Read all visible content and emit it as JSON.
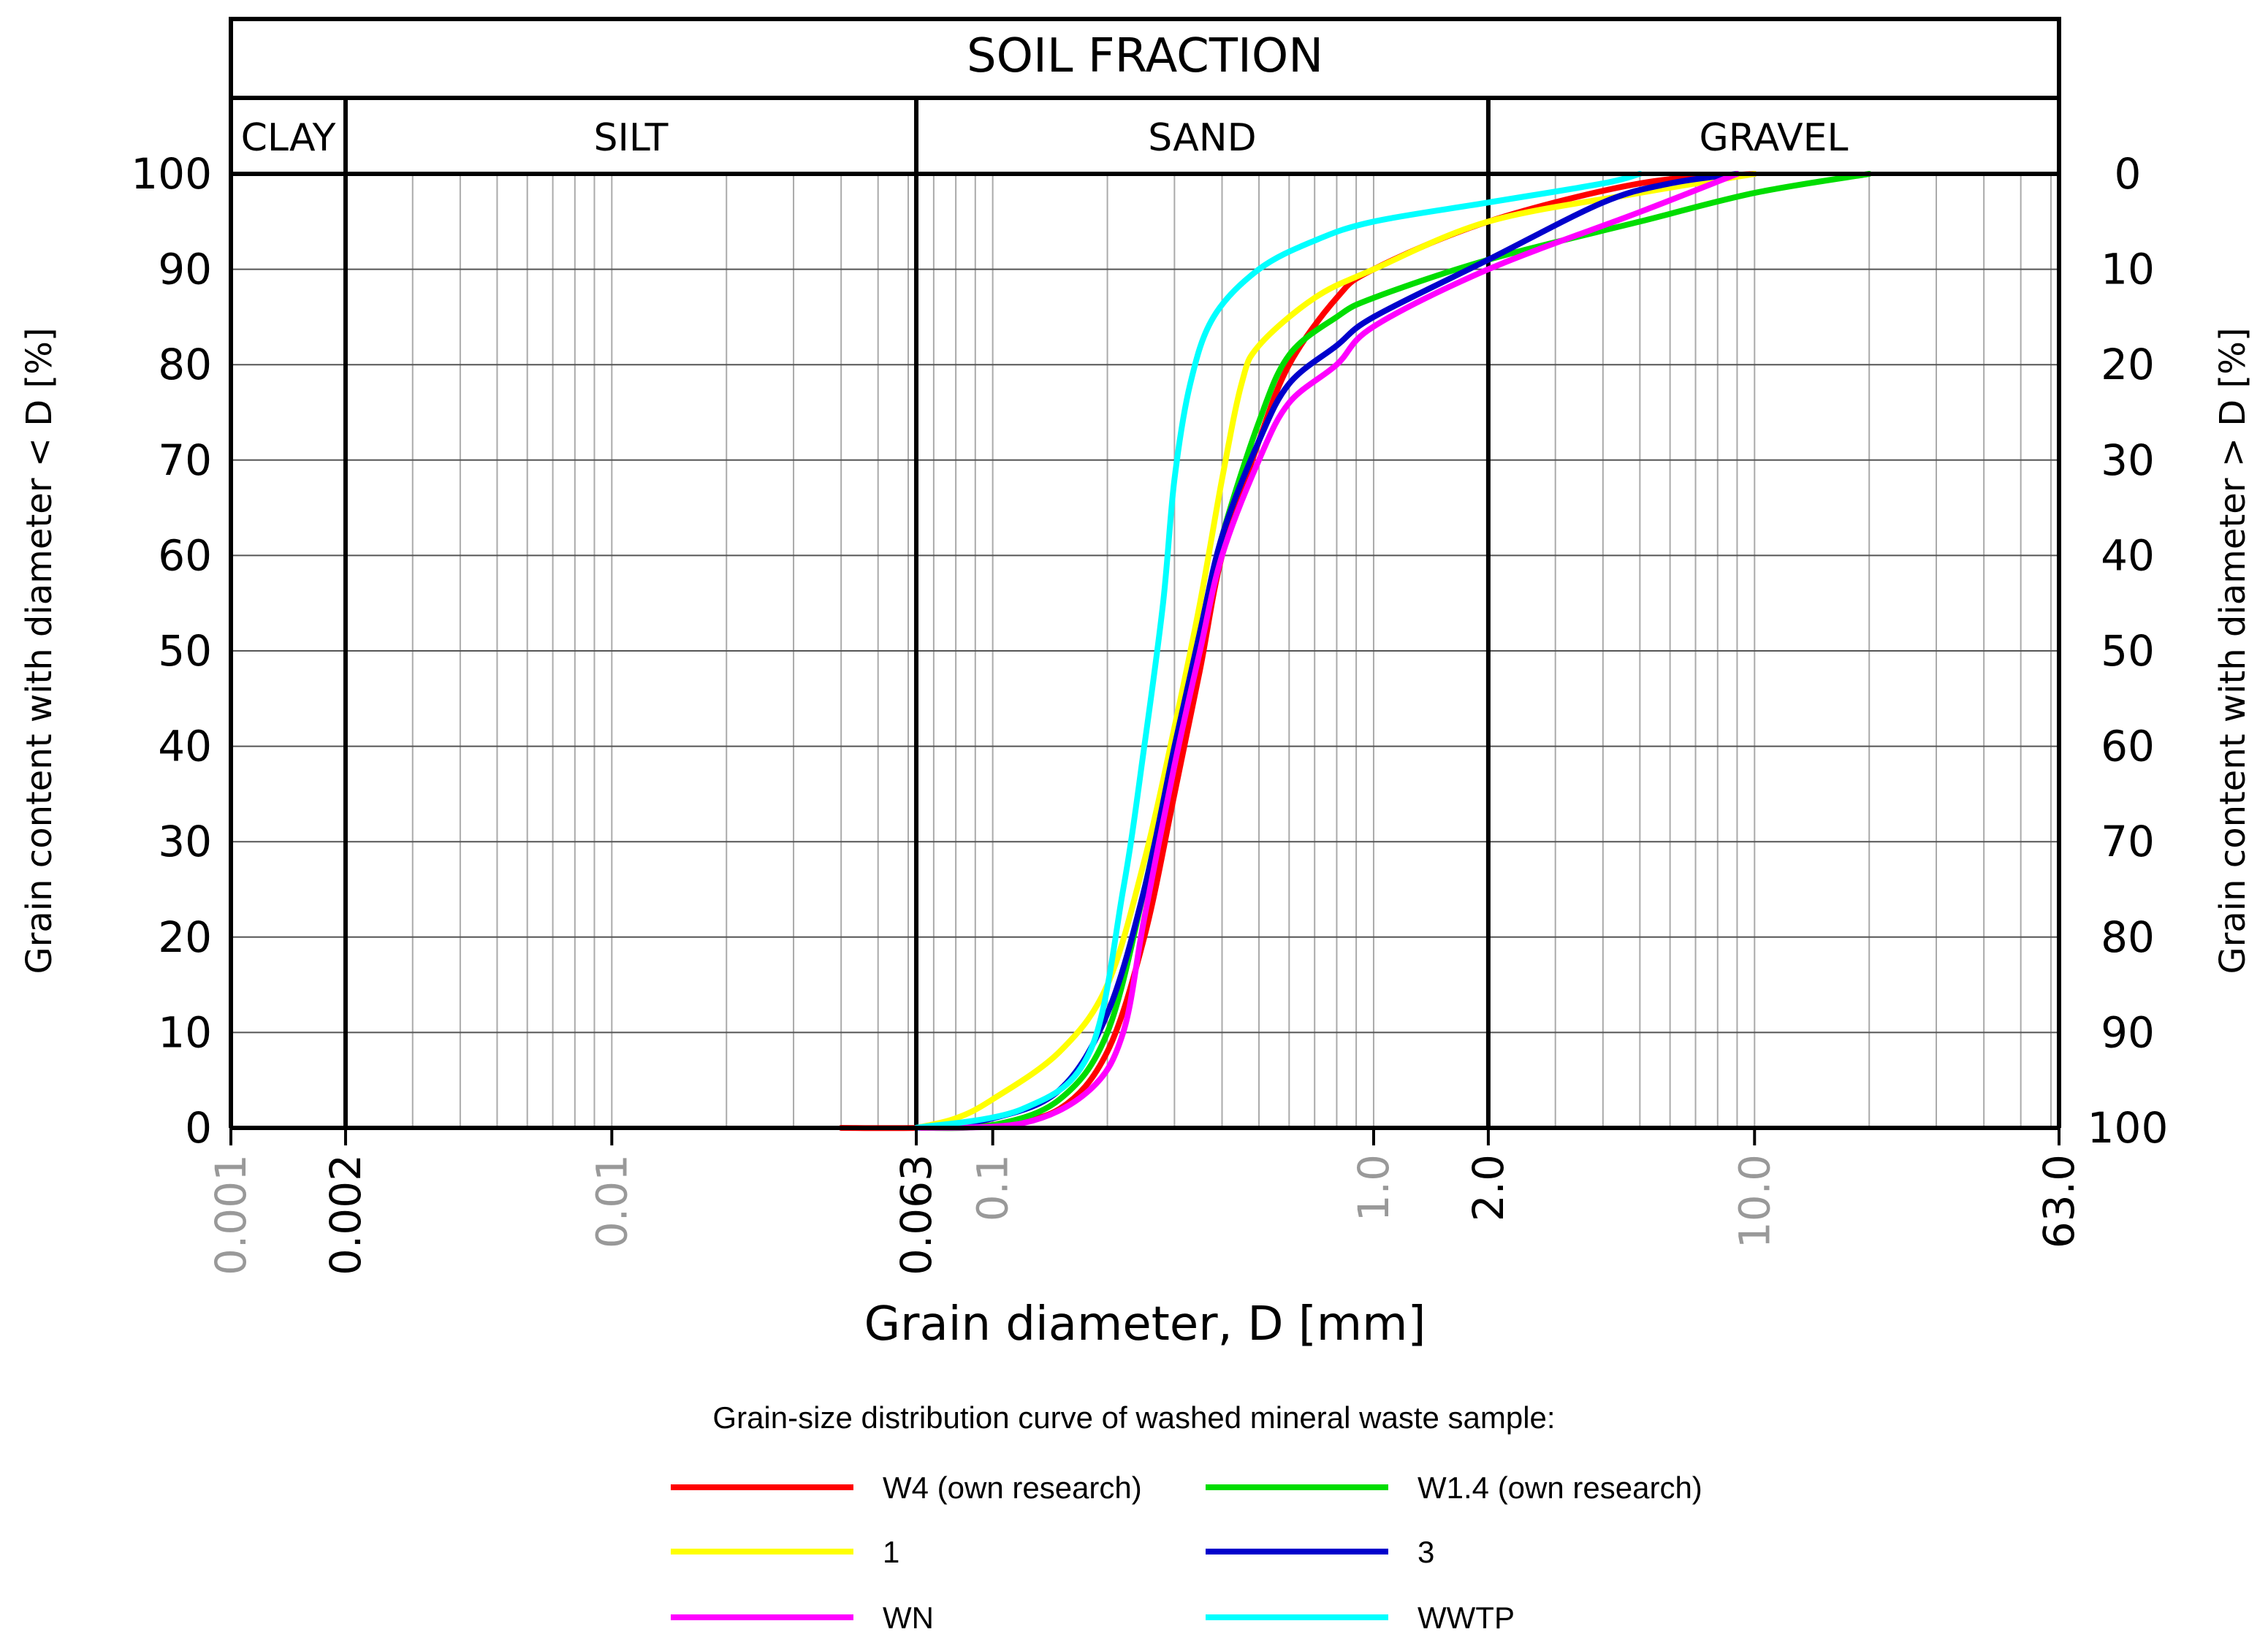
{
  "chart_data": {
    "type": "line",
    "title": "SOIL FRACTION",
    "xlabel": "Grain diameter, D [mm]",
    "ylabel_left": "Grain content with diameter < D [%]",
    "ylabel_right": "Grain content with diameter > D [%]",
    "x_scale": "log",
    "xlim": [
      0.001,
      63.0
    ],
    "ylim": [
      0,
      100
    ],
    "y_ticks_left": [
      "0",
      "10",
      "20",
      "30",
      "40",
      "50",
      "60",
      "70",
      "80",
      "90",
      "100"
    ],
    "y_ticks_right": [
      "100",
      "90",
      "80",
      "70",
      "60",
      "50",
      "40",
      "30",
      "20",
      "10",
      "0"
    ],
    "x_ticks": [
      {
        "value": 0.001,
        "label": "0.001",
        "style": "minor"
      },
      {
        "value": 0.002,
        "label": "0.002",
        "style": "major"
      },
      {
        "value": 0.01,
        "label": "0.01",
        "style": "minor"
      },
      {
        "value": 0.063,
        "label": "0.063",
        "style": "major"
      },
      {
        "value": 0.1,
        "label": "0.1",
        "style": "minor"
      },
      {
        "value": 1.0,
        "label": "1.0",
        "style": "minor"
      },
      {
        "value": 2.0,
        "label": "2.0",
        "style": "major"
      },
      {
        "value": 10.0,
        "label": "10.0",
        "style": "minor"
      },
      {
        "value": 63.0,
        "label": "63.0",
        "style": "major"
      }
    ],
    "fractions": [
      {
        "name": "CLAY",
        "from": 0.001,
        "to": 0.002
      },
      {
        "name": "SILT",
        "from": 0.002,
        "to": 0.063
      },
      {
        "name": "SAND",
        "from": 0.063,
        "to": 2.0
      },
      {
        "name": "GRAVEL",
        "from": 2.0,
        "to": 63.0
      }
    ],
    "legend_title": "Grain-size distribution curve of washed mineral waste sample:",
    "series": [
      {
        "name": "W4 (own research)",
        "color": "#ff0000",
        "points": [
          [
            0.04,
            0
          ],
          [
            0.063,
            0
          ],
          [
            0.1,
            0.3
          ],
          [
            0.15,
            2
          ],
          [
            0.2,
            8
          ],
          [
            0.25,
            20
          ],
          [
            0.3,
            35
          ],
          [
            0.35,
            48
          ],
          [
            0.4,
            60
          ],
          [
            0.5,
            72
          ],
          [
            0.6,
            80
          ],
          [
            0.8,
            87
          ],
          [
            1.0,
            90
          ],
          [
            2.0,
            95
          ],
          [
            5.0,
            99
          ],
          [
            10.0,
            100
          ]
        ]
      },
      {
        "name": "W1.4 (own research)",
        "color": "#00dd00",
        "points": [
          [
            0.063,
            0
          ],
          [
            0.1,
            0.3
          ],
          [
            0.15,
            3
          ],
          [
            0.2,
            10
          ],
          [
            0.25,
            25
          ],
          [
            0.3,
            40
          ],
          [
            0.35,
            52
          ],
          [
            0.4,
            62
          ],
          [
            0.5,
            74
          ],
          [
            0.6,
            81
          ],
          [
            0.8,
            85
          ],
          [
            1.0,
            87
          ],
          [
            2.0,
            91
          ],
          [
            5.0,
            95
          ],
          [
            10.0,
            98
          ],
          [
            20.0,
            100
          ]
        ]
      },
      {
        "name": "1",
        "color": "#ffff00",
        "points": [
          [
            0.063,
            0
          ],
          [
            0.08,
            1
          ],
          [
            0.1,
            3
          ],
          [
            0.15,
            8
          ],
          [
            0.2,
            15
          ],
          [
            0.25,
            28
          ],
          [
            0.3,
            42
          ],
          [
            0.35,
            55
          ],
          [
            0.4,
            68
          ],
          [
            0.45,
            78
          ],
          [
            0.5,
            82
          ],
          [
            0.7,
            87
          ],
          [
            1.0,
            90
          ],
          [
            2.0,
            95
          ],
          [
            5.0,
            98
          ],
          [
            10.0,
            100
          ]
        ]
      },
      {
        "name": "3",
        "color": "#0000cc",
        "points": [
          [
            0.063,
            0
          ],
          [
            0.1,
            1
          ],
          [
            0.15,
            4
          ],
          [
            0.2,
            12
          ],
          [
            0.25,
            25
          ],
          [
            0.3,
            40
          ],
          [
            0.35,
            52
          ],
          [
            0.4,
            62
          ],
          [
            0.5,
            72
          ],
          [
            0.6,
            78
          ],
          [
            0.8,
            82
          ],
          [
            1.0,
            85
          ],
          [
            2.0,
            91
          ],
          [
            4.0,
            97
          ],
          [
            6.0,
            99
          ],
          [
            9.0,
            100
          ]
        ]
      },
      {
        "name": "WN",
        "color": "#ff00ff",
        "points": [
          [
            0.063,
            0
          ],
          [
            0.12,
            0.5
          ],
          [
            0.18,
            4
          ],
          [
            0.22,
            10
          ],
          [
            0.25,
            22
          ],
          [
            0.3,
            38
          ],
          [
            0.35,
            50
          ],
          [
            0.4,
            60
          ],
          [
            0.5,
            70
          ],
          [
            0.6,
            76
          ],
          [
            0.8,
            80
          ],
          [
            1.0,
            84
          ],
          [
            2.0,
            90
          ],
          [
            5.0,
            96
          ],
          [
            9.0,
            100
          ]
        ]
      },
      {
        "name": "WWTP",
        "color": "#00ffff",
        "points": [
          [
            0.063,
            0
          ],
          [
            0.12,
            2
          ],
          [
            0.18,
            8
          ],
          [
            0.22,
            25
          ],
          [
            0.25,
            40
          ],
          [
            0.28,
            55
          ],
          [
            0.3,
            68
          ],
          [
            0.33,
            78
          ],
          [
            0.38,
            85
          ],
          [
            0.5,
            90
          ],
          [
            0.7,
            93
          ],
          [
            1.0,
            95
          ],
          [
            2.0,
            97
          ],
          [
            4.0,
            99
          ],
          [
            5.0,
            100
          ]
        ]
      }
    ]
  }
}
